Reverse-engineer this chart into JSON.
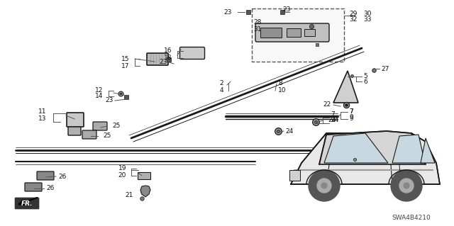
{
  "bg_color": "#ffffff",
  "fig_width": 6.4,
  "fig_height": 3.19,
  "dpi": 100,
  "watermark": "SWA4B4210",
  "line_color": "#1a1a1a",
  "text_color": "#111111",
  "label_fontsize": 6.5
}
